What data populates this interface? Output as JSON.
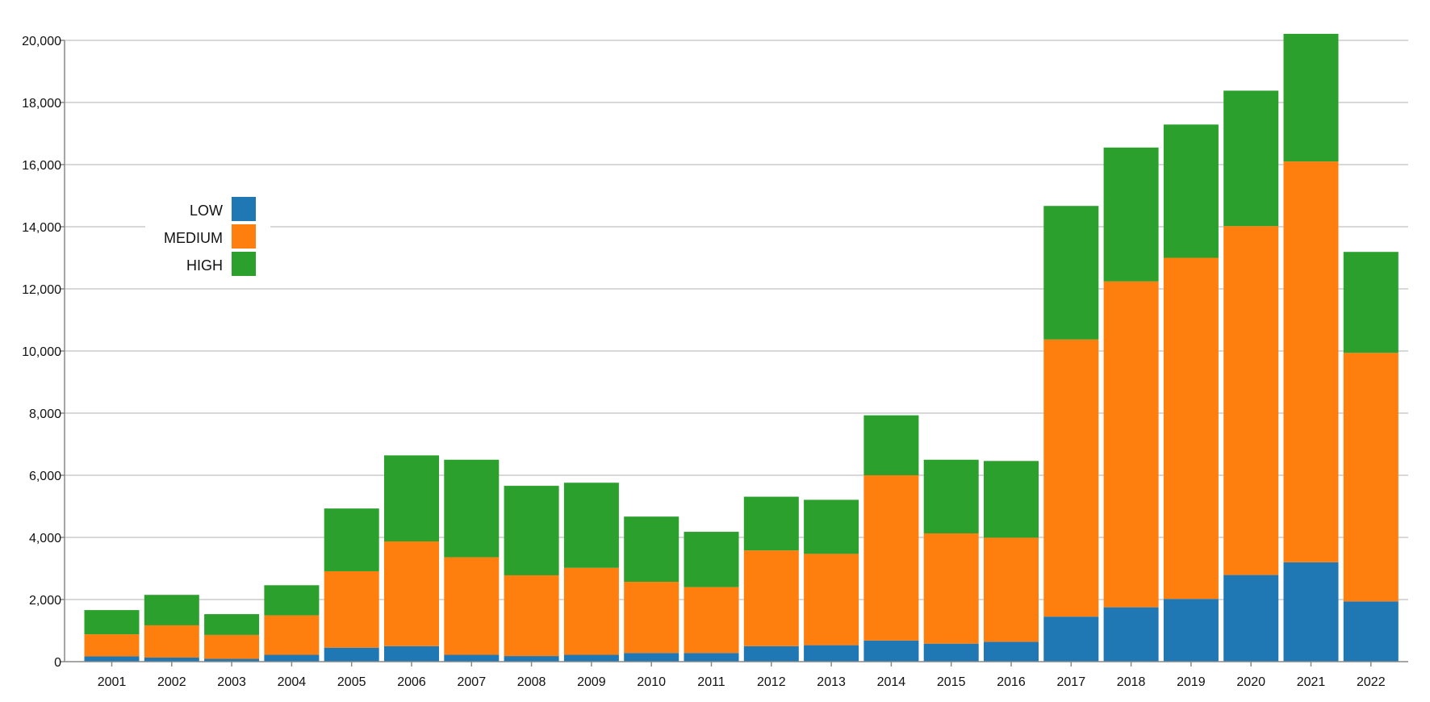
{
  "chart_data": {
    "type": "bar",
    "stacked": true,
    "categories": [
      "2001",
      "2002",
      "2003",
      "2004",
      "2005",
      "2006",
      "2007",
      "2008",
      "2009",
      "2010",
      "2011",
      "2012",
      "2013",
      "2014",
      "2015",
      "2016",
      "2017",
      "2018",
      "2019",
      "2020",
      "2021",
      "2022"
    ],
    "series": [
      {
        "name": "LOW",
        "color": "#1f77b4",
        "values": [
          170,
          130,
          90,
          220,
          450,
          500,
          220,
          180,
          220,
          280,
          280,
          500,
          530,
          680,
          580,
          640,
          1450,
          1750,
          2020,
          2790,
          3200,
          1940
        ]
      },
      {
        "name": "MEDIUM",
        "color": "#ff7f0e",
        "values": [
          710,
          1040,
          770,
          1270,
          2460,
          3370,
          3140,
          2600,
          2800,
          2290,
          2120,
          3080,
          2940,
          5320,
          3550,
          3350,
          8920,
          10490,
          10980,
          11230,
          12900,
          8000
        ]
      },
      {
        "name": "HIGH",
        "color": "#2ca02c",
        "values": [
          780,
          980,
          670,
          970,
          2020,
          2770,
          3140,
          2880,
          2740,
          2100,
          1780,
          1730,
          1740,
          1930,
          2370,
          2470,
          4300,
          4310,
          4290,
          4360,
          4110,
          3250
        ]
      }
    ],
    "ylim": [
      0,
      20000
    ],
    "yticks": [
      "0",
      "2,000",
      "4,000",
      "6,000",
      "8,000",
      "10,000",
      "12,000",
      "14,000",
      "16,000",
      "18,000",
      "20,000"
    ],
    "ytick_values": [
      0,
      2000,
      4000,
      6000,
      8000,
      10000,
      12000,
      14000,
      16000,
      18000,
      20000
    ],
    "grid": true,
    "legend": {
      "position": "left-upper",
      "entries": [
        "LOW",
        "MEDIUM",
        "HIGH"
      ]
    },
    "title": "",
    "xlabel": "",
    "ylabel": ""
  }
}
